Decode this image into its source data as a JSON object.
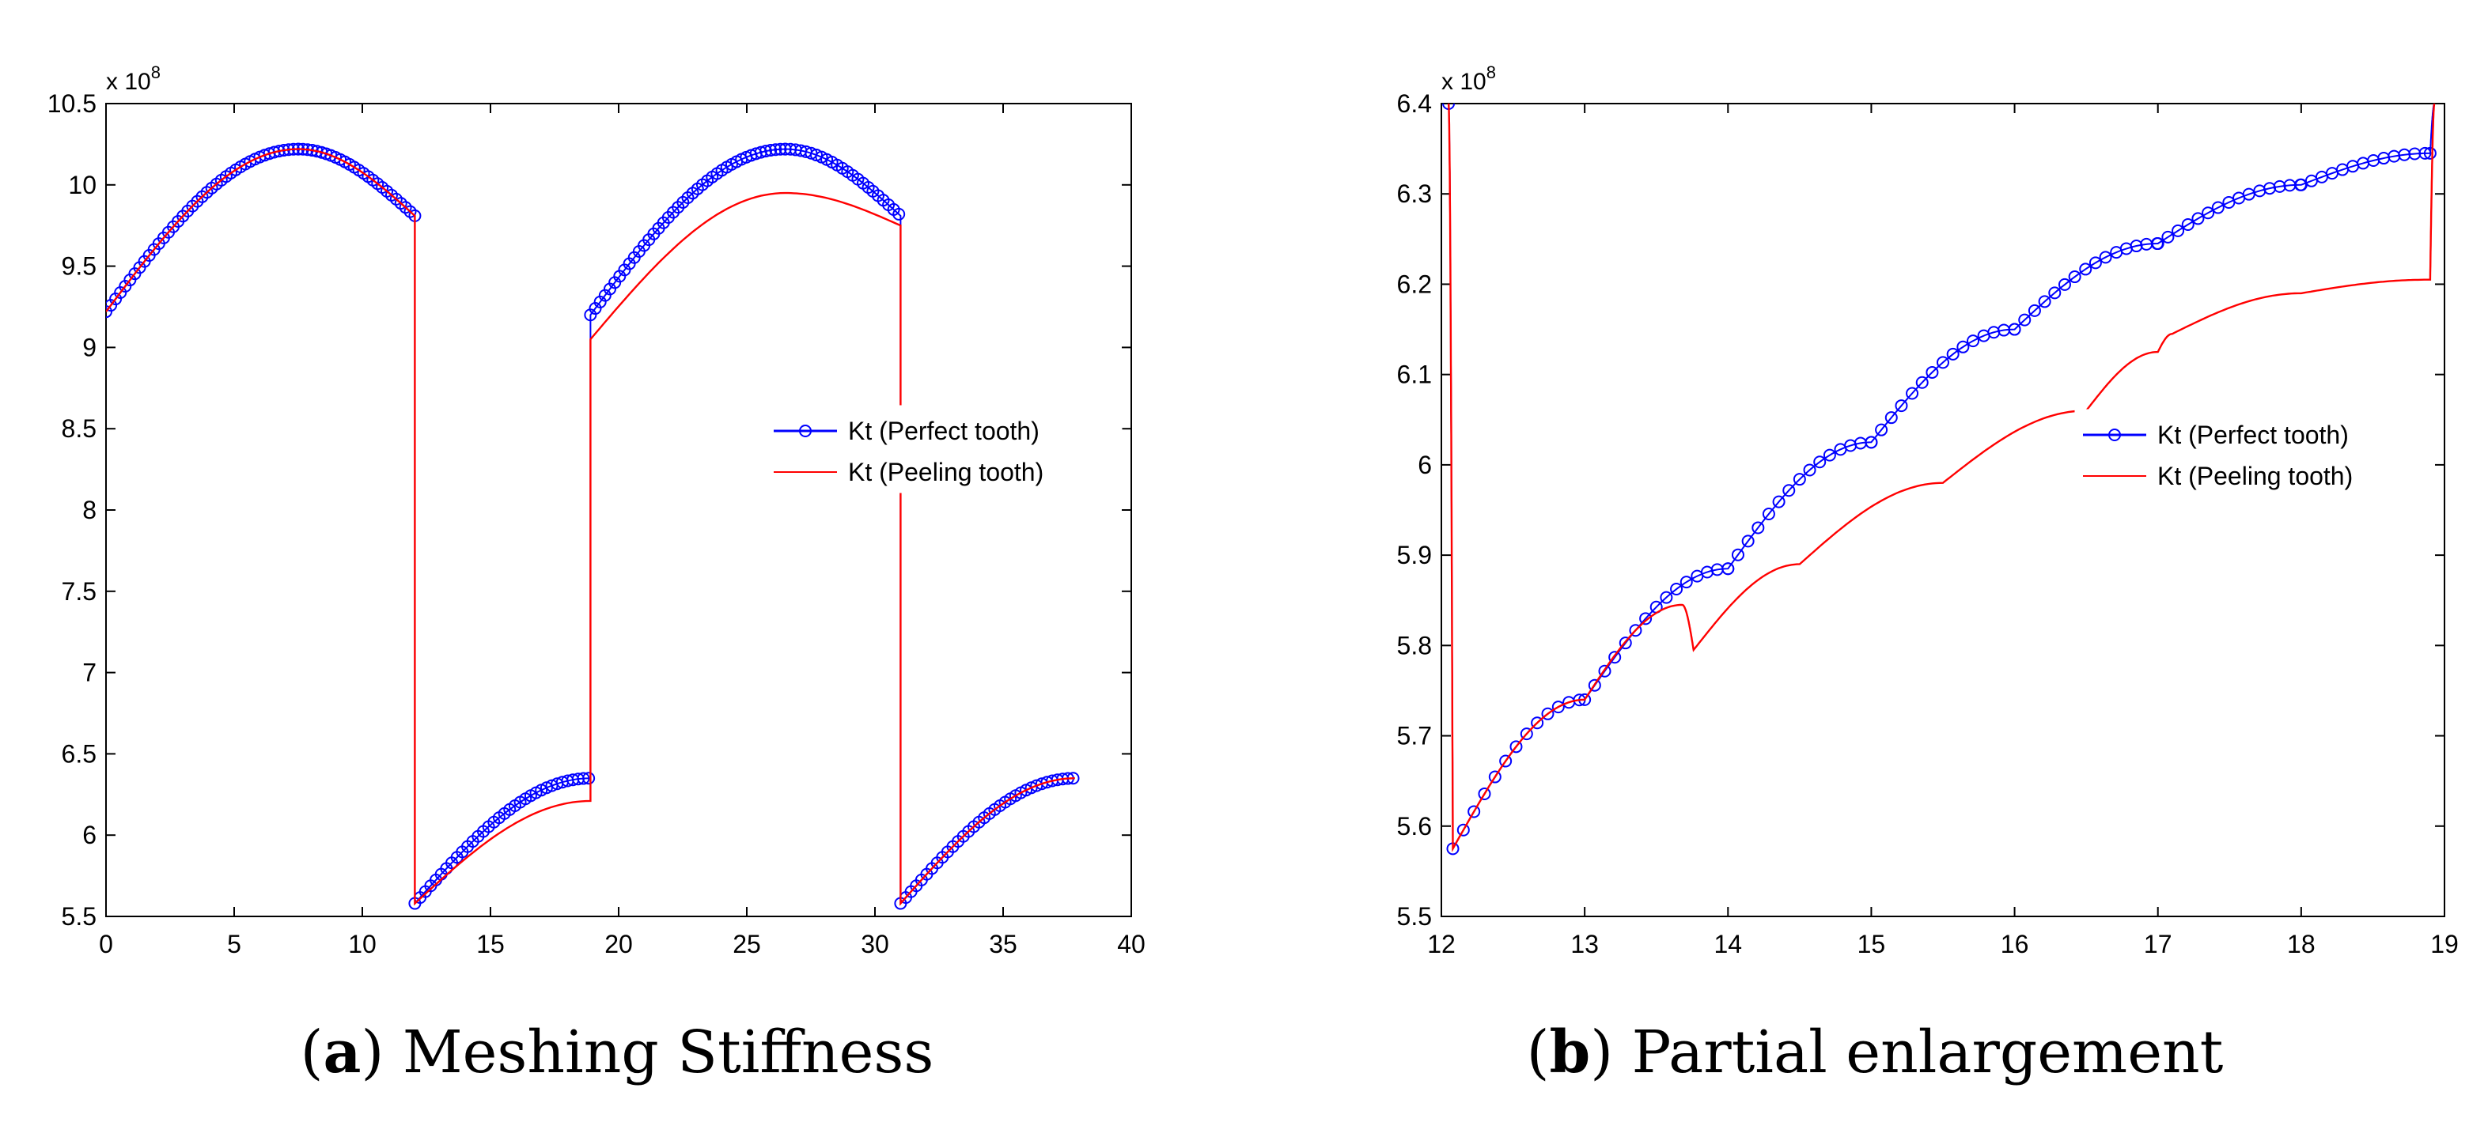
{
  "chart_data": [
    {
      "id": "a",
      "type": "line",
      "caption_label": "a",
      "caption_text": "Meshing Stiffness",
      "y_exponent_base": "x 10",
      "y_exponent_power": "8",
      "xlim": [
        0,
        40
      ],
      "ylim": [
        5.5,
        10.5
      ],
      "xticks": [
        0,
        5,
        10,
        15,
        20,
        25,
        30,
        35,
        40
      ],
      "xtick_labels": [
        "0",
        "5",
        "10",
        "15",
        "20",
        "25",
        "30",
        "35",
        "40"
      ],
      "yticks": [
        5.5,
        6,
        6.5,
        7,
        7.5,
        8,
        8.5,
        9,
        9.5,
        10,
        10.5
      ],
      "ytick_labels": [
        "5.5",
        "6",
        "6.5",
        "7",
        "7.5",
        "8",
        "8.5",
        "9",
        "9.5",
        "10",
        "10.5"
      ],
      "legend_position": "right-middle",
      "series": [
        {
          "name": "Kt (Perfect tooth)",
          "color": "#0000ff",
          "marker": "circle",
          "x": [
            0.0,
            7.5,
            12.05,
            12.05,
            18.9,
            18.9,
            26.5,
            31.0,
            31.0,
            37.8
          ],
          "y": [
            9.22,
            10.22,
            9.81,
            5.58,
            6.35,
            9.2,
            10.22,
            9.81,
            5.58,
            6.35
          ]
        },
        {
          "name": "Kt (Peeling tooth)",
          "color": "#ff0000",
          "marker": "none",
          "x": [
            0.0,
            7.5,
            12.05,
            12.05,
            18.9,
            18.9,
            26.5,
            31.0,
            31.0,
            37.8
          ],
          "y": [
            9.22,
            10.22,
            9.81,
            5.58,
            6.21,
            9.05,
            9.95,
            9.75,
            5.58,
            6.35
          ]
        }
      ]
    },
    {
      "id": "b",
      "type": "line",
      "caption_label": "b",
      "caption_text": "Partial enlargement",
      "y_exponent_base": "x 10",
      "y_exponent_power": "8",
      "xlim": [
        12,
        19
      ],
      "ylim": [
        5.5,
        6.4
      ],
      "xticks": [
        12,
        13,
        14,
        15,
        16,
        17,
        18,
        19
      ],
      "xtick_labels": [
        "12",
        "13",
        "14",
        "15",
        "16",
        "17",
        "18",
        "19"
      ],
      "yticks": [
        5.5,
        5.6,
        5.7,
        5.8,
        5.9,
        6.0,
        6.1,
        6.2,
        6.3,
        6.4
      ],
      "ytick_labels": [
        "5.5",
        "5.6",
        "5.7",
        "5.8",
        "5.9",
        "6",
        "6.1",
        "6.2",
        "6.3",
        "6.4"
      ],
      "legend_position": "right-middle",
      "series": [
        {
          "name": "Kt (Perfect tooth)",
          "color": "#0000ff",
          "marker": "circle",
          "x": [
            12.05,
            12.08,
            13.0,
            14.0,
            15.0,
            16.0,
            17.0,
            18.0,
            18.9,
            18.93
          ],
          "y": [
            6.4,
            5.575,
            5.74,
            5.885,
            6.025,
            6.15,
            6.245,
            6.31,
            6.345,
            6.4
          ]
        },
        {
          "name": "Kt (Peeling tooth)",
          "color": "#ff0000",
          "marker": "none",
          "x": [
            12.05,
            12.08,
            13.0,
            13.68,
            13.76,
            14.5,
            15.5,
            16.5,
            17.0,
            17.1,
            18.0,
            18.88,
            18.9,
            18.93
          ],
          "y": [
            6.4,
            5.575,
            5.74,
            5.845,
            5.795,
            5.89,
            5.98,
            6.06,
            6.125,
            6.145,
            6.19,
            6.205,
            6.205,
            6.4
          ]
        }
      ]
    }
  ]
}
